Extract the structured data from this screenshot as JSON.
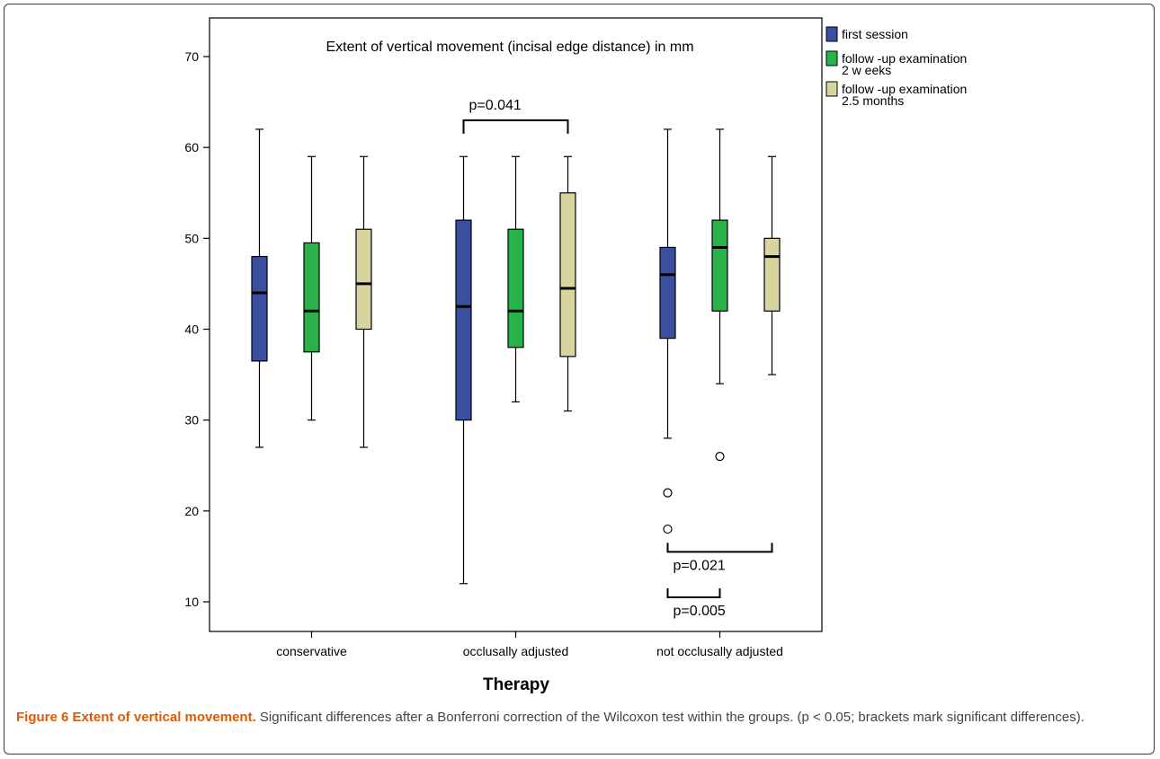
{
  "chart_data": {
    "type": "box",
    "title": "Extent of vertical movement (incisal edge distance) in mm",
    "xlabel": "Therapy",
    "ylabel": "",
    "ylim": [
      5,
      73
    ],
    "yticks": [
      10,
      20,
      30,
      40,
      50,
      60,
      70
    ],
    "categories": [
      "conservative",
      "occlusally adjusted",
      "not occlusally adjusted"
    ],
    "series": [
      {
        "name": "first session",
        "color": "#3a4fa0",
        "boxes": [
          {
            "min": 27,
            "q1": 36.5,
            "median": 44,
            "q3": 48,
            "max": 62,
            "outliers": []
          },
          {
            "min": 12,
            "q1": 30,
            "median": 42.5,
            "q3": 52,
            "max": 59,
            "outliers": []
          },
          {
            "min": 28,
            "q1": 39,
            "median": 46,
            "q3": 49,
            "max": 62,
            "outliers": [
              22,
              18
            ]
          }
        ]
      },
      {
        "name": "follow-up examination 2 weeks",
        "color": "#2ab24a",
        "boxes": [
          {
            "min": 30,
            "q1": 37.5,
            "median": 42,
            "q3": 49.5,
            "max": 59,
            "outliers": []
          },
          {
            "min": 32,
            "q1": 38,
            "median": 42,
            "q3": 51,
            "max": 59,
            "outliers": []
          },
          {
            "min": 34,
            "q1": 42,
            "median": 49,
            "q3": 52,
            "max": 62,
            "outliers": [
              26
            ]
          }
        ]
      },
      {
        "name": "follow-up examination 2.5 months",
        "color": "#d8d4a0",
        "boxes": [
          {
            "min": 27,
            "q1": 40,
            "median": 45,
            "q3": 51,
            "max": 59,
            "outliers": []
          },
          {
            "min": 31,
            "q1": 37,
            "median": 44.5,
            "q3": 55,
            "max": 59,
            "outliers": []
          },
          {
            "min": 35,
            "q1": 42,
            "median": 48,
            "q3": 50,
            "max": 59,
            "outliers": []
          }
        ]
      }
    ],
    "legend": {
      "placement": "right",
      "entries": [
        {
          "lines": [
            "first session"
          ],
          "color": "#3a4fa0"
        },
        {
          "lines": [
            "follow -up examination",
            "2 w eeks"
          ],
          "color": "#2ab24a"
        },
        {
          "lines": [
            "follow -up examination",
            "2.5 months"
          ],
          "color": "#d8d4a0"
        }
      ]
    },
    "annotations": [
      {
        "text": "p=0.041",
        "category": 1,
        "from_series": 0,
        "to_series": 2,
        "y": 63,
        "orientation": "down",
        "label_position": "above"
      },
      {
        "text": "p=0.021",
        "category": 2,
        "from_series": 0,
        "to_series": 2,
        "y": 15.5,
        "orientation": "up",
        "label_position": "below"
      },
      {
        "text": "p=0.005",
        "category": 2,
        "from_series": 0,
        "to_series": 1,
        "y": 10.5,
        "orientation": "up",
        "label_position": "below"
      }
    ]
  },
  "caption": {
    "title": "Figure 6 Extent of vertical movement.",
    "body": " Significant differences after a Bonferroni correction of the Wilcoxon test within the groups. (p < 0.05; brackets mark significant differences)."
  }
}
